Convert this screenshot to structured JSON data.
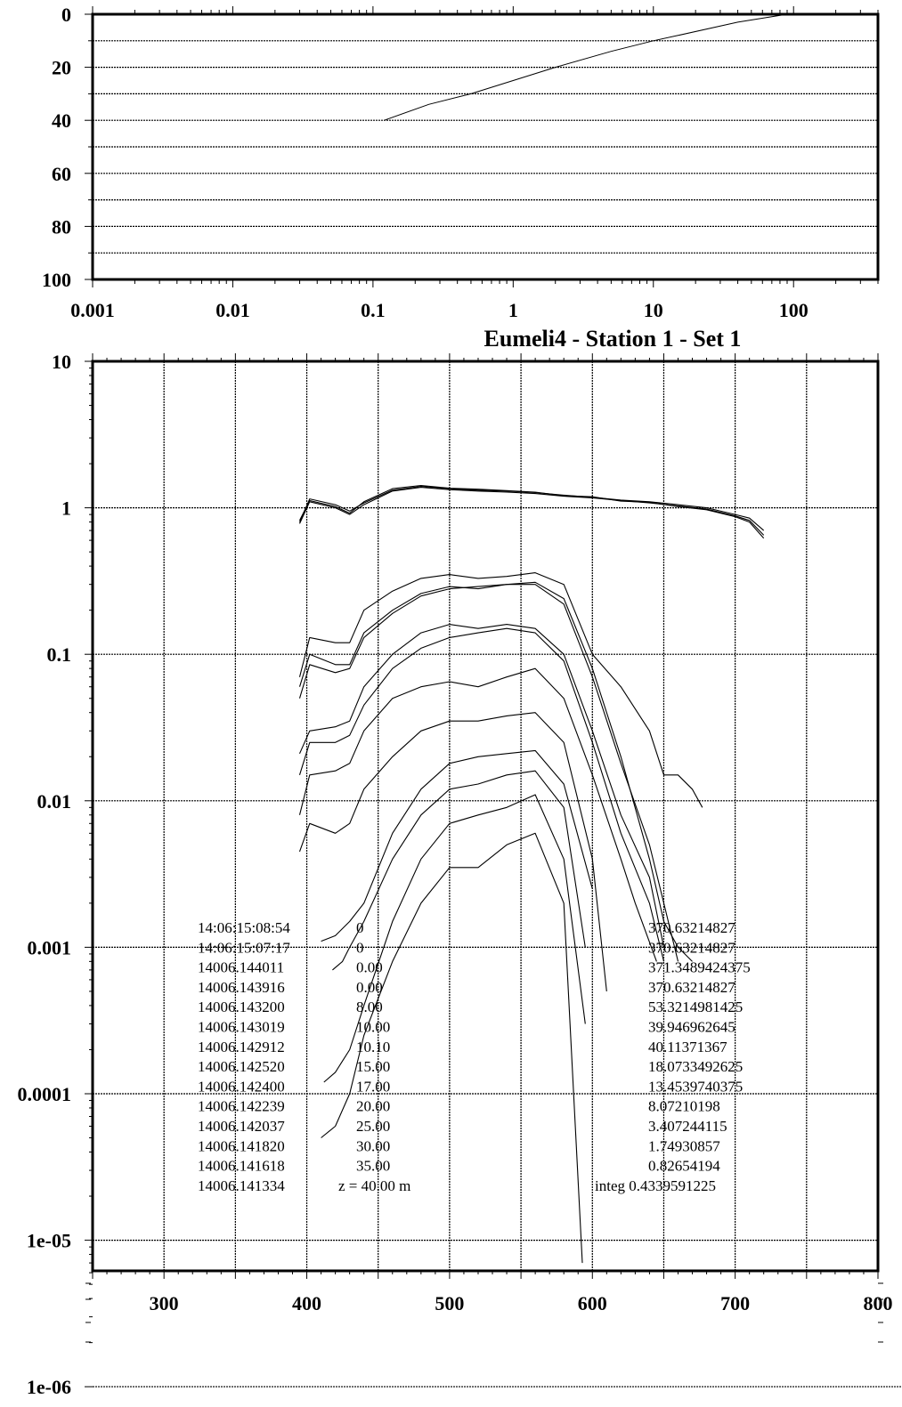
{
  "chart_data": [
    {
      "type": "line",
      "x_scale": "log",
      "xlim": [
        0.001,
        400
      ],
      "ylim": [
        0,
        100
      ],
      "y_inverted": true,
      "x_ticks": [
        "0.001",
        "0.01",
        "0.1",
        "1",
        "10",
        "100"
      ],
      "y_ticks": [
        "0",
        "20",
        "40",
        "60",
        "80",
        "100"
      ],
      "grid": "horizontal dashed every 10",
      "series": [
        {
          "points": [
            [
              90,
              0
            ],
            [
              40,
              3
            ],
            [
              15,
              8
            ],
            [
              10,
              10
            ],
            [
              5,
              14
            ],
            [
              2,
              20
            ],
            [
              1,
              25
            ],
            [
              0.5,
              30
            ],
            [
              0.25,
              34
            ],
            [
              0.12,
              40
            ]
          ]
        }
      ]
    },
    {
      "type": "line",
      "title": "Eumeli4 - Station 1 - Set 1",
      "y_scale": "log",
      "xlim": [
        250,
        800
      ],
      "ylim": [
        1e-06,
        10
      ],
      "x_ticks": [
        "300",
        "400",
        "500",
        "600",
        "700",
        "800"
      ],
      "y_ticks": [
        "10",
        "1",
        "0.1",
        "0.01",
        "0.001",
        "0.0001",
        "1e-05",
        "1e-06"
      ],
      "grid": "dashed vertical every 50, horizontal at decades",
      "series": [
        {
          "x": [
            395,
            402,
            420,
            430,
            440,
            460,
            480,
            500,
            520,
            540,
            560,
            580,
            600,
            620,
            640,
            660,
            680,
            700,
            710,
            720
          ],
          "y": [
            0.78,
            1.1,
            1.0,
            0.9,
            1.05,
            1.3,
            1.38,
            1.33,
            1.3,
            1.28,
            1.25,
            1.2,
            1.17,
            1.12,
            1.08,
            1.03,
            0.98,
            0.88,
            0.82,
            0.65
          ]
        },
        {
          "x": [
            395,
            402,
            420,
            430,
            440,
            460,
            480,
            500,
            520,
            540,
            560,
            580,
            600,
            620,
            640,
            660,
            680,
            700,
            710,
            720
          ],
          "y": [
            0.8,
            1.15,
            1.05,
            0.95,
            1.08,
            1.32,
            1.4,
            1.35,
            1.32,
            1.3,
            1.27,
            1.22,
            1.18,
            1.13,
            1.1,
            1.05,
            1.0,
            0.9,
            0.85,
            0.7
          ]
        },
        {
          "x": [
            395,
            402,
            420,
            430,
            440,
            460,
            480,
            500,
            520,
            540,
            560,
            580,
            600,
            620,
            640,
            660,
            680,
            700,
            710,
            720
          ],
          "y": [
            0.82,
            1.12,
            1.02,
            0.92,
            1.1,
            1.35,
            1.42,
            1.36,
            1.34,
            1.31,
            1.28,
            1.21,
            1.19,
            1.11,
            1.09,
            1.02,
            0.97,
            0.87,
            0.8,
            0.62
          ]
        },
        {
          "x": [
            395,
            402,
            420,
            430,
            440,
            460,
            480,
            500,
            520,
            540,
            560,
            580,
            600,
            620,
            640,
            650,
            660,
            670,
            677
          ],
          "y": [
            0.07,
            0.13,
            0.12,
            0.12,
            0.2,
            0.27,
            0.33,
            0.35,
            0.33,
            0.34,
            0.36,
            0.3,
            0.1,
            0.06,
            0.03,
            0.015,
            0.015,
            0.012,
            0.009
          ]
        },
        {
          "x": [
            395,
            402,
            420,
            430,
            440,
            460,
            480,
            500,
            520,
            540,
            560,
            580,
            600,
            620,
            640,
            650,
            660,
            670
          ],
          "y": [
            0.06,
            0.1,
            0.085,
            0.085,
            0.14,
            0.2,
            0.26,
            0.29,
            0.28,
            0.3,
            0.31,
            0.24,
            0.08,
            0.02,
            0.004,
            0.0015,
            0.001,
            0.0008
          ]
        },
        {
          "x": [
            395,
            402,
            420,
            430,
            440,
            460,
            480,
            500,
            520,
            540,
            560,
            580,
            600,
            620,
            640,
            650,
            660
          ],
          "y": [
            0.05,
            0.085,
            0.075,
            0.08,
            0.13,
            0.19,
            0.25,
            0.28,
            0.29,
            0.3,
            0.3,
            0.22,
            0.07,
            0.018,
            0.005,
            0.002,
            0.0008
          ]
        },
        {
          "x": [
            395,
            402,
            420,
            430,
            440,
            460,
            480,
            500,
            520,
            540,
            560,
            580,
            600,
            620,
            640,
            650
          ],
          "y": [
            0.021,
            0.03,
            0.032,
            0.035,
            0.06,
            0.1,
            0.14,
            0.16,
            0.15,
            0.16,
            0.15,
            0.1,
            0.03,
            0.008,
            0.003,
            0.001
          ]
        },
        {
          "x": [
            395,
            402,
            420,
            430,
            440,
            460,
            480,
            500,
            520,
            540,
            560,
            580,
            600,
            620,
            640,
            650
          ],
          "y": [
            0.015,
            0.025,
            0.025,
            0.028,
            0.045,
            0.08,
            0.11,
            0.13,
            0.14,
            0.15,
            0.14,
            0.09,
            0.025,
            0.006,
            0.002,
            0.0008
          ]
        },
        {
          "x": [
            395,
            402,
            420,
            430,
            440,
            460,
            480,
            500,
            520,
            540,
            560,
            580,
            600,
            620,
            630,
            645
          ],
          "y": [
            0.008,
            0.015,
            0.016,
            0.018,
            0.03,
            0.05,
            0.06,
            0.065,
            0.06,
            0.07,
            0.08,
            0.05,
            0.015,
            0.004,
            0.002,
            0.0008
          ]
        },
        {
          "x": [
            395,
            402,
            420,
            430,
            440,
            460,
            480,
            500,
            520,
            540,
            560,
            580,
            600,
            610
          ],
          "y": [
            0.0045,
            0.007,
            0.006,
            0.007,
            0.012,
            0.02,
            0.03,
            0.035,
            0.035,
            0.038,
            0.04,
            0.025,
            0.004,
            0.0005
          ]
        },
        {
          "x": [
            410,
            420,
            430,
            440,
            460,
            480,
            500,
            520,
            540,
            560,
            580,
            600
          ],
          "y": [
            0.0011,
            0.0012,
            0.0015,
            0.002,
            0.006,
            0.012,
            0.018,
            0.02,
            0.021,
            0.022,
            0.013,
            0.0025
          ]
        },
        {
          "x": [
            418,
            425,
            430,
            440,
            460,
            480,
            500,
            520,
            540,
            560,
            580,
            595
          ],
          "y": [
            0.0007,
            0.0008,
            0.001,
            0.0015,
            0.004,
            0.008,
            0.012,
            0.013,
            0.015,
            0.016,
            0.009,
            0.001
          ]
        },
        {
          "x": [
            412,
            420,
            430,
            440,
            460,
            480,
            500,
            520,
            540,
            560,
            580,
            595
          ],
          "y": [
            0.00012,
            0.00014,
            0.0002,
            0.0004,
            0.0015,
            0.004,
            0.007,
            0.008,
            0.009,
            0.011,
            0.004,
            0.0003
          ]
        },
        {
          "x": [
            410,
            420,
            430,
            440,
            460,
            480,
            500,
            520,
            540,
            560,
            580,
            593
          ],
          "y": [
            5e-05,
            6e-05,
            0.0001,
            0.00025,
            0.0008,
            0.002,
            0.0035,
            0.0035,
            0.005,
            0.006,
            0.002,
            7e-06
          ]
        }
      ],
      "annotations": {
        "rows": [
          {
            "time": "14:06:15:08:54",
            "depth": "0",
            "value": "370.63214827"
          },
          {
            "time": "14:06:15:07:17",
            "depth": "0",
            "value": "370.63214827"
          },
          {
            "time": "14006.144011",
            "depth": "0.00",
            "value": "371.3489424375"
          },
          {
            "time": "14006.143916",
            "depth": "0.00",
            "value": "370.63214827"
          },
          {
            "time": "14006.143200",
            "depth": "8.00",
            "value": "53.3214981425"
          },
          {
            "time": "14006.143019",
            "depth": "10.00",
            "value": "39.946962645"
          },
          {
            "time": "14006.142912",
            "depth": "10.10",
            "value": "40.11371367"
          },
          {
            "time": "14006.142520",
            "depth": "15.00",
            "value": "18.0733492625"
          },
          {
            "time": "14006.142400",
            "depth": "17.00",
            "value": "13.4539740375"
          },
          {
            "time": "14006.142239",
            "depth": "20.00",
            "value": "8.07210198"
          },
          {
            "time": "14006.142037",
            "depth": "25.00",
            "value": "3.407244115"
          },
          {
            "time": "14006.141820",
            "depth": "30.00",
            "value": "1.74930857"
          },
          {
            "time": "14006.141618",
            "depth": "35.00",
            "value": "0.82654194"
          },
          {
            "time": "14006.141334",
            "depth": "z = 40.00   m",
            "value": "integ  0.4339591225"
          }
        ]
      }
    }
  ]
}
